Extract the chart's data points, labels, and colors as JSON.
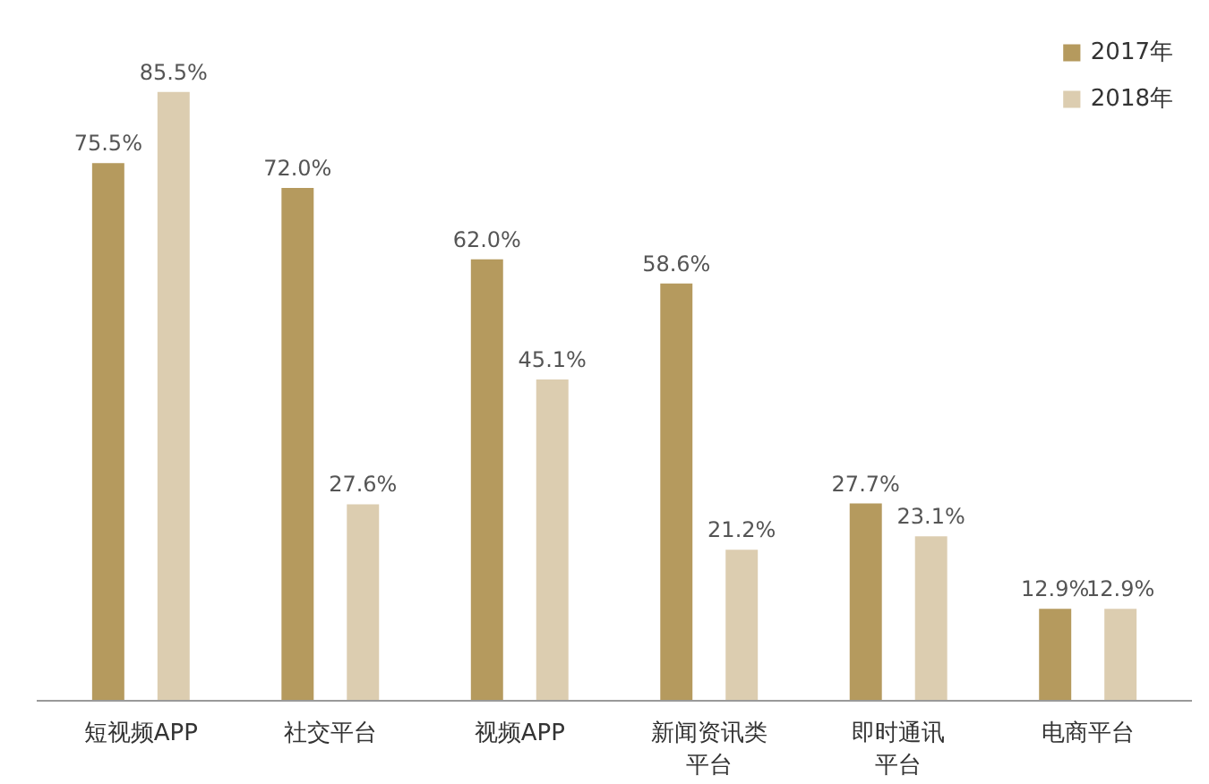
{
  "chart_data": {
    "type": "bar",
    "categories": [
      "短视频APP",
      "社交平台",
      "视频APP",
      "新闻资讯类平台",
      "即时通讯平台",
      "电商平台"
    ],
    "series": [
      {
        "name": "2017年",
        "color": "#b59a5e",
        "values": [
          75.5,
          72.0,
          62.0,
          58.6,
          27.7,
          12.9
        ],
        "value_labels": [
          "75.5%",
          "72.0%",
          "62.0%",
          "58.6%",
          "27.7%",
          "12.9%"
        ]
      },
      {
        "name": "2018年",
        "color": "#dccdb0",
        "values": [
          85.5,
          27.6,
          45.1,
          21.2,
          23.1,
          12.9
        ],
        "value_labels": [
          "85.5%",
          "27.6%",
          "45.1%",
          "21.2%",
          "23.1%",
          "12.9%"
        ]
      }
    ],
    "grid": false,
    "legend": "top right",
    "tick_labels": "x"
  }
}
